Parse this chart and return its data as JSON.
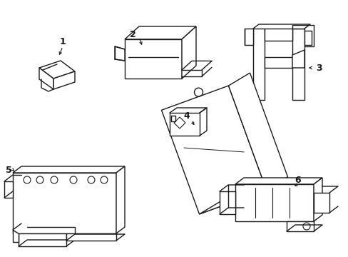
{
  "background_color": "#ffffff",
  "line_color": "#1a1a1a",
  "line_width": 1.0,
  "figsize": [
    4.89,
    3.6
  ],
  "dpi": 100
}
